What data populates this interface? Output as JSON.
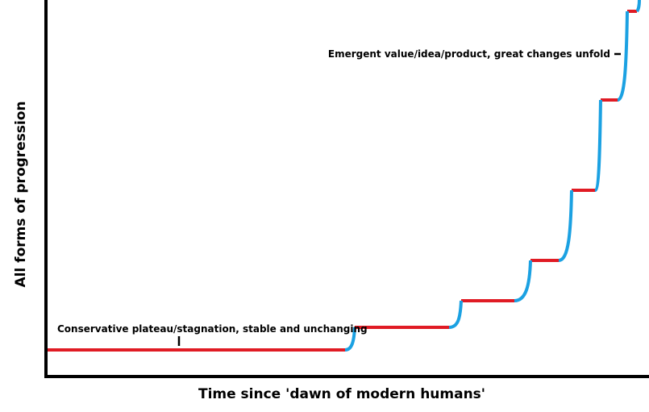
{
  "axes": {
    "y_label": "All forms of progression",
    "x_label": "Time since 'dawn of modern humans'"
  },
  "annotations": [
    {
      "text": "Conservative plateau/stagnation, stable and unchanging"
    },
    {
      "text": "Emergent value/idea/product, great changes unfold"
    }
  ]
}
